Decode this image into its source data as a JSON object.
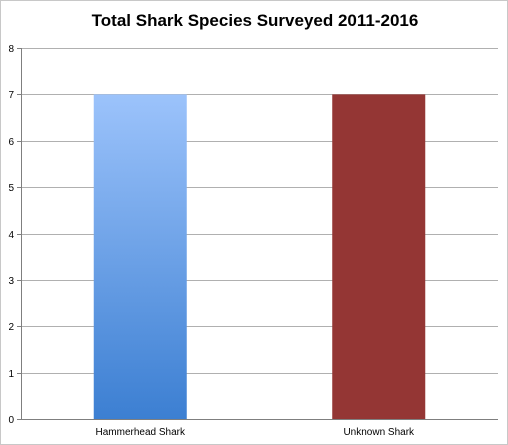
{
  "chart_data": {
    "type": "bar",
    "title": "Total Shark Species Surveyed 2011-2016",
    "categories": [
      "Hammerhead Shark",
      "Unknown Shark"
    ],
    "values": [
      7,
      7
    ],
    "ylim": [
      0,
      8
    ],
    "yticks": [
      0,
      1,
      2,
      3,
      4,
      5,
      6,
      7,
      8
    ],
    "grid": true,
    "legend": "none",
    "bar_colors": [
      {
        "type": "gradient",
        "top": "#9cc3fb",
        "bottom": "#3c7fd2"
      },
      {
        "type": "solid",
        "color": "#943634"
      }
    ],
    "gridline_color": "#b0b0b0",
    "axis_color": "#7f7f7f"
  }
}
